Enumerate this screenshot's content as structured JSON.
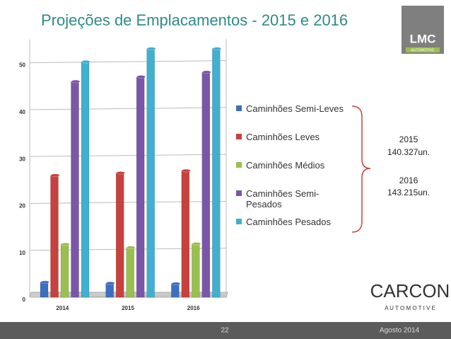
{
  "chart_data": {
    "type": "bar",
    "title": "Projeções de Emplacamentos - 2015 e 2016",
    "categories": [
      "2014",
      "2015",
      "2016"
    ],
    "series": [
      {
        "name": "Caminhões Semi-Leves",
        "color": "#3d6fc1",
        "values": [
          3.2,
          3.0,
          2.9
        ]
      },
      {
        "name": "Caminhões Leves",
        "color": "#c8413c",
        "values": [
          26,
          26.5,
          27
        ]
      },
      {
        "name": "Caminhões Médios",
        "color": "#9bbf4e",
        "values": [
          11.3,
          10.6,
          11.4
        ]
      },
      {
        "name": "Caminhões Semi-Pesados",
        "color": "#7a56a8",
        "values": [
          46,
          47,
          48
        ]
      },
      {
        "name": "Caminhões Pesados",
        "color": "#3fb0cf",
        "values": [
          50.2,
          53,
          53
        ]
      }
    ],
    "ylim": [
      0,
      55
    ],
    "yticks": [
      0,
      10,
      20,
      30,
      40,
      50
    ],
    "grid": true,
    "annotations": [
      "2015",
      "140.327un.",
      "2016",
      "143.215un."
    ]
  },
  "logos": {
    "lmc": "LMC",
    "lmc_sub": "AUTOMOTIVE",
    "carcon": "CARCON",
    "carcon_sub": "A U T O M O T I V E"
  },
  "footer": {
    "page": "22",
    "date": "Agosto 2014"
  }
}
